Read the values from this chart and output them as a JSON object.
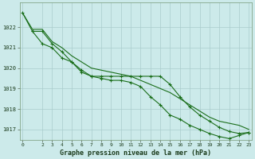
{
  "title": "Graphe pression niveau de la mer (hPa)",
  "background_color": "#cceaea",
  "grid_color": "#aacccc",
  "line_color": "#1a6e1a",
  "ylim": [
    1016.5,
    1023.2
  ],
  "yticks": [
    1017,
    1018,
    1019,
    1020,
    1021,
    1022
  ],
  "xlim": [
    -0.3,
    23.3
  ],
  "xticks": [
    0,
    2,
    3,
    4,
    5,
    6,
    7,
    8,
    9,
    10,
    11,
    12,
    13,
    14,
    15,
    16,
    17,
    18,
    19,
    20,
    21,
    22,
    23
  ],
  "line_top": {
    "x": [
      0,
      1,
      2,
      3,
      4,
      5,
      6,
      7,
      8,
      9,
      10,
      11,
      12,
      13,
      14,
      15,
      16,
      17,
      18,
      19,
      20,
      21,
      22,
      23
    ],
    "y": [
      1022.7,
      1021.9,
      1021.9,
      1021.3,
      1021.0,
      1020.6,
      1020.3,
      1020.0,
      1019.9,
      1019.8,
      1019.7,
      1019.6,
      1019.4,
      1019.2,
      1019.0,
      1018.8,
      1018.5,
      1018.2,
      1017.9,
      1017.6,
      1017.4,
      1017.3,
      1017.2,
      1017.0
    ]
  },
  "line_mid": {
    "x": [
      1,
      2,
      3,
      4,
      5,
      6,
      7,
      8,
      9,
      10,
      11,
      12,
      13,
      14,
      15,
      16,
      17,
      18,
      19,
      20,
      21,
      22,
      23
    ],
    "y": [
      1021.8,
      1021.8,
      1021.2,
      1020.8,
      1020.3,
      1019.9,
      1019.6,
      1019.6,
      1019.6,
      1019.6,
      1019.6,
      1019.6,
      1019.6,
      1019.6,
      1019.2,
      1018.6,
      1018.1,
      1017.7,
      1017.4,
      1017.1,
      1016.9,
      1016.8,
      1016.85
    ]
  },
  "line_bot": {
    "x": [
      0,
      1,
      2,
      3,
      4,
      5,
      6,
      7,
      8,
      9,
      10,
      11,
      12,
      13,
      14,
      15,
      16,
      17,
      18,
      19,
      20,
      21,
      22,
      23
    ],
    "y": [
      1022.7,
      1021.8,
      1021.2,
      1021.0,
      1020.5,
      1020.3,
      1019.8,
      1019.6,
      1019.5,
      1019.4,
      1019.4,
      1019.3,
      1019.1,
      1018.6,
      1018.2,
      1017.7,
      1017.5,
      1017.2,
      1017.0,
      1016.8,
      1016.65,
      1016.55,
      1016.7,
      1016.85
    ]
  }
}
